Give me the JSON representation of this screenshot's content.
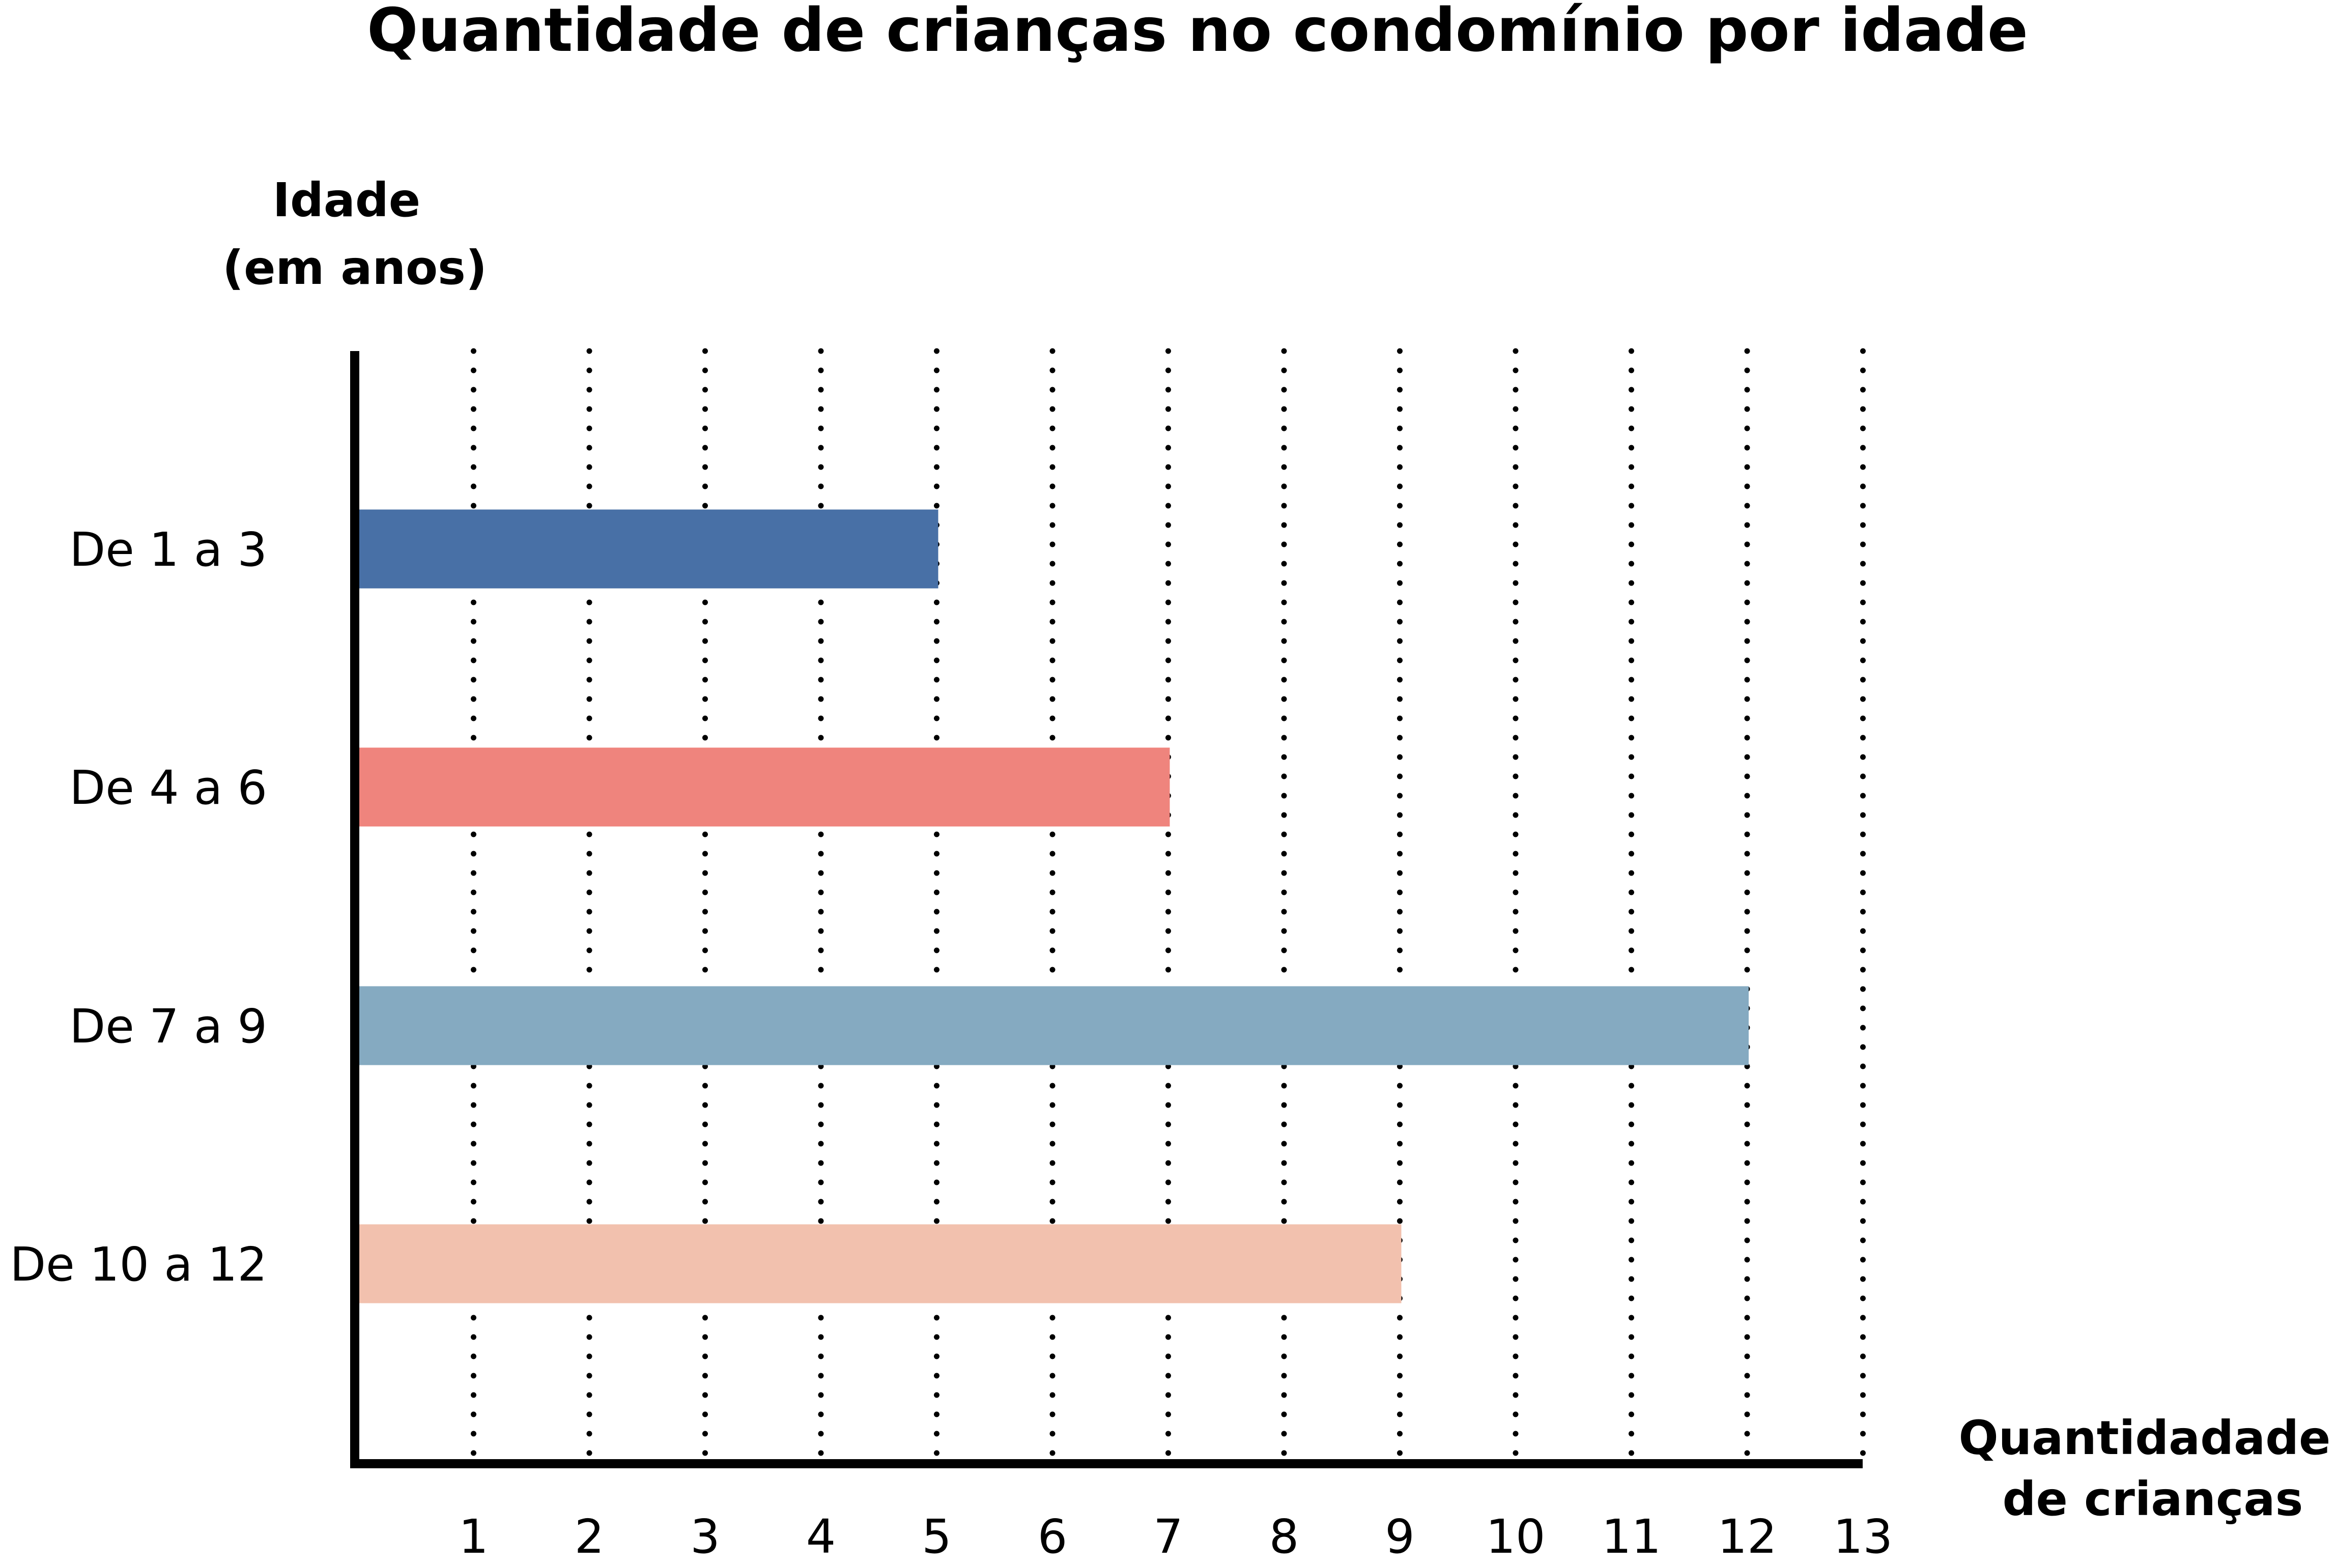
{
  "chart_data": {
    "type": "bar",
    "orientation": "horizontal",
    "title": "Quantidade de crianças no condomínio por idade",
    "ylabel": [
      "Idade",
      "(em anos)"
    ],
    "xlabel": [
      "Quantidadade",
      "de crianças"
    ],
    "categories": [
      "De 1 a 3",
      "De 4 a 6",
      "De 7 a 9",
      "De 10 a 12"
    ],
    "values": [
      5,
      7,
      12,
      9
    ],
    "colors": [
      "#4870a6",
      "#ef847d",
      "#85aac1",
      "#f2c1ae"
    ],
    "xticks": [
      1,
      2,
      3,
      4,
      5,
      6,
      7,
      8,
      9,
      10,
      11,
      12,
      13
    ],
    "xlim": [
      0,
      13
    ],
    "grid": "vertical dotted lines",
    "legend": "none"
  }
}
